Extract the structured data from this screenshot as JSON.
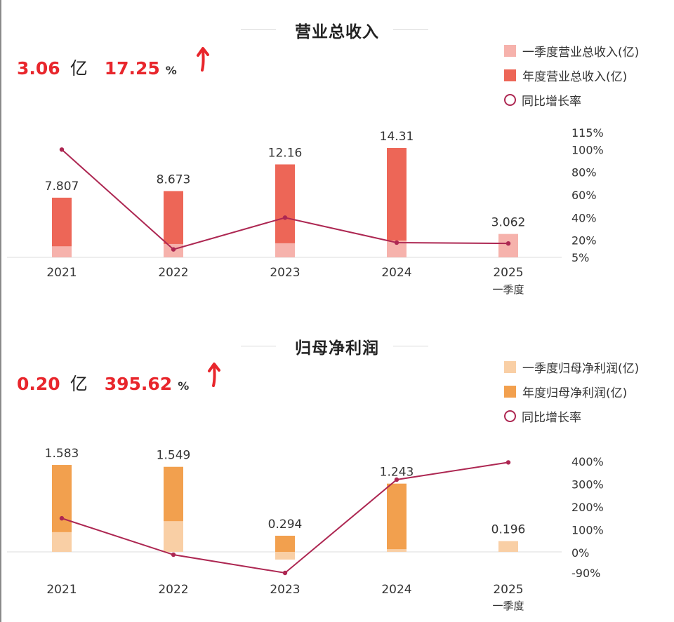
{
  "revenue": {
    "title": "营业总收入",
    "headline": {
      "value": "3.06",
      "unit": "亿",
      "change": "17.25",
      "change_unit": "%"
    },
    "legend": [
      "一季度营业总收入(亿)",
      "年度营业总收入(亿)",
      "同比增长率"
    ],
    "colors": {
      "quarter": "#f6b2ac",
      "annual": "#ed6657",
      "line": "#ad2752",
      "headline": "#e8262c"
    }
  },
  "profit": {
    "title": "归母净利润",
    "headline": {
      "value": "0.20",
      "unit": "亿",
      "change": "395.62",
      "change_unit": "%"
    },
    "legend": [
      "一季度归母净利润(亿)",
      "年度归母净利润(亿)",
      "同比增长率"
    ],
    "colors": {
      "quarter": "#f9cfa5",
      "annual": "#f2a04e",
      "line": "#ad2752",
      "headline": "#e8262c"
    }
  },
  "chart_data": [
    {
      "type": "bar",
      "title": "营业总收入",
      "categories": [
        "2021",
        "2022",
        "2023",
        "2024",
        "2025\n一季度"
      ],
      "series": [
        {
          "name": "一季度营业总收入(亿)",
          "values": [
            1.45,
            1.75,
            1.85,
            2.2,
            3.062
          ]
        },
        {
          "name": "年度营业总收入(亿)",
          "values": [
            7.807,
            8.673,
            12.16,
            14.31,
            null
          ],
          "labels": [
            "7.807",
            "8.673",
            "12.16",
            "14.31",
            "3.062"
          ]
        },
        {
          "name": "同比增长率",
          "type": "line",
          "axis": "right",
          "values": [
            100,
            12,
            40,
            18,
            17.25
          ]
        }
      ],
      "y2_ticks": [
        "115%",
        "100%",
        "80%",
        "60%",
        "40%",
        "20%",
        "5%"
      ],
      "y2_tick_values": [
        115,
        100,
        80,
        60,
        40,
        20,
        5
      ],
      "y2lim": [
        5,
        115
      ]
    },
    {
      "type": "bar",
      "title": "归母净利润",
      "categories": [
        "2021",
        "2022",
        "2023",
        "2024",
        "2025\n一季度"
      ],
      "series": [
        {
          "name": "一季度归母净利润(亿)",
          "values": [
            0.36,
            0.56,
            -0.14,
            0.05,
            0.196
          ]
        },
        {
          "name": "年度归母净利润(亿)",
          "values": [
            1.583,
            1.549,
            0.294,
            1.243,
            null
          ],
          "labels": [
            "1.583",
            "1.549",
            "0.294",
            "1.243",
            "0.196"
          ]
        },
        {
          "name": "同比增长率",
          "type": "line",
          "axis": "right",
          "values": [
            150,
            -10,
            -90,
            320,
            395.62
          ]
        }
      ],
      "y2_ticks": [
        "400%",
        "300%",
        "200%",
        "100%",
        "0%",
        "-90%"
      ],
      "y2_tick_values": [
        400,
        300,
        200,
        100,
        0,
        -90
      ],
      "y2lim": [
        -90,
        400
      ]
    }
  ]
}
